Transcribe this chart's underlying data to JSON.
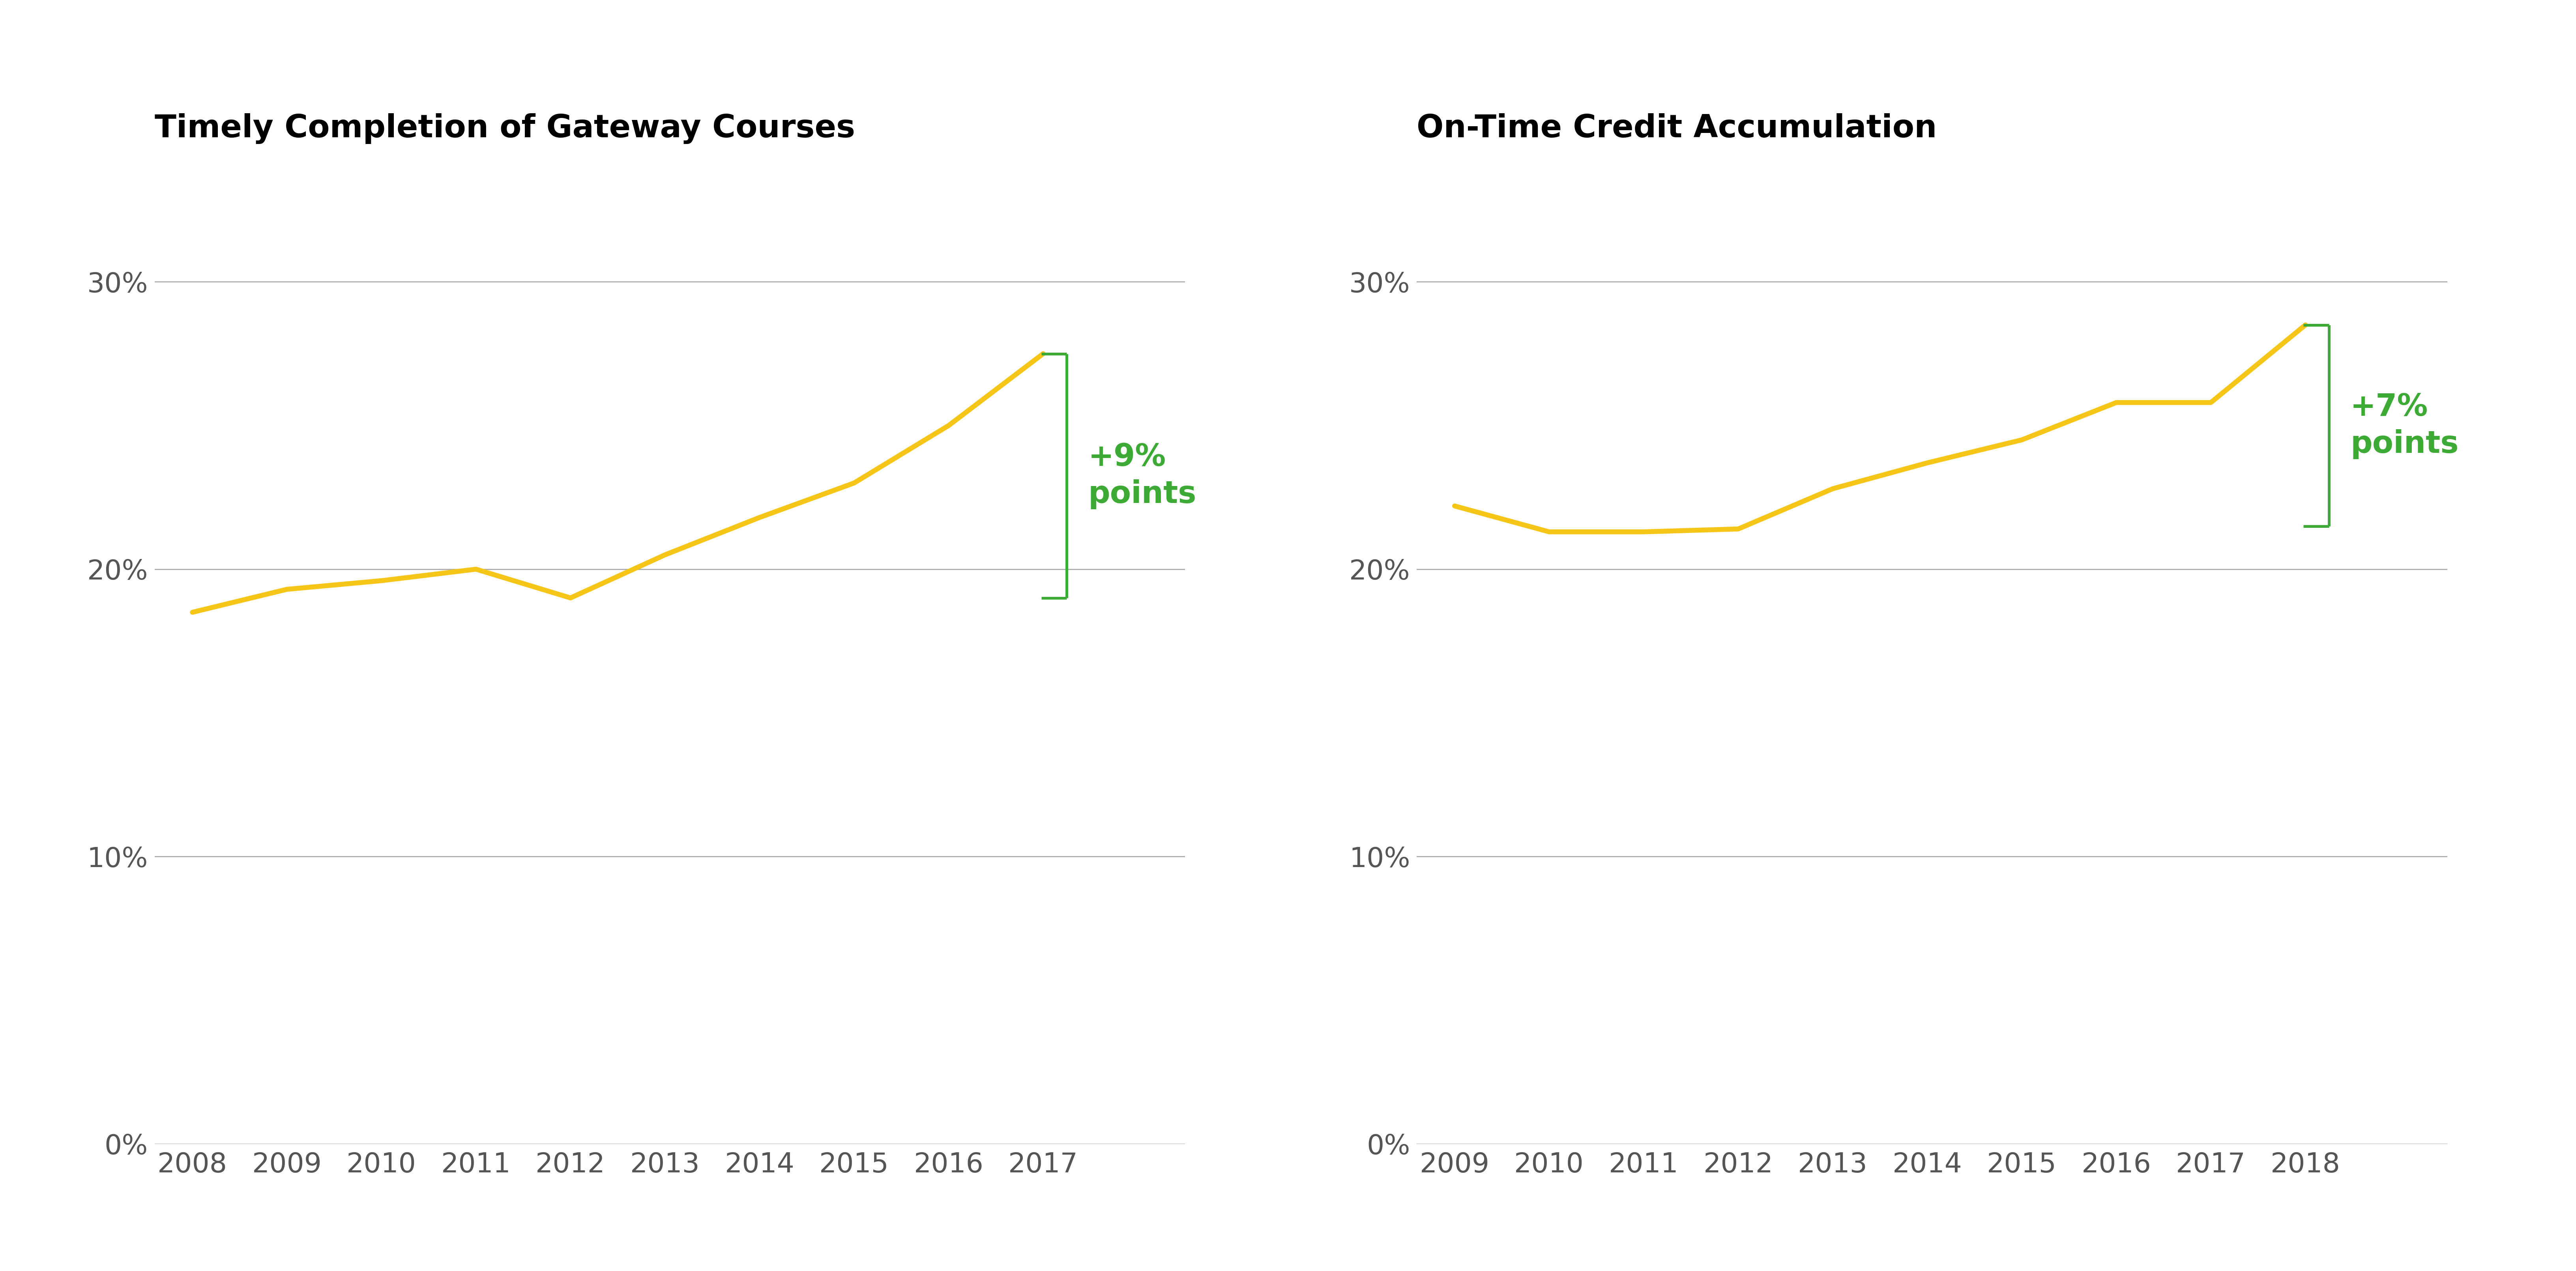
{
  "left_title": "Timely Completion of Gateway Courses",
  "right_title": "On-Time Credit Accumulation",
  "left_years": [
    2008,
    2009,
    2010,
    2011,
    2012,
    2013,
    2014,
    2015,
    2016,
    2017
  ],
  "left_values": [
    0.185,
    0.193,
    0.196,
    0.2,
    0.19,
    0.205,
    0.218,
    0.23,
    0.25,
    0.275
  ],
  "right_years": [
    2009,
    2010,
    2011,
    2012,
    2013,
    2014,
    2015,
    2016,
    2017,
    2018
  ],
  "right_values": [
    0.222,
    0.213,
    0.213,
    0.214,
    0.228,
    0.237,
    0.245,
    0.258,
    0.258,
    0.285
  ],
  "line_color": "#F5C518",
  "bracket_color": "#3DAA35",
  "annotation_color": "#3DAA35",
  "left_annotation": "+9%\npoints",
  "right_annotation": "+7%\npoints",
  "yticks": [
    0.0,
    0.1,
    0.2,
    0.3
  ],
  "ylim": [
    0.0,
    0.345
  ],
  "background_color": "#ffffff",
  "title_fontsize": 58,
  "tick_fontsize": 50,
  "annotation_fontsize": 56,
  "line_width": 9,
  "grid_color": "#aaaaaa",
  "tick_label_color": "#555555"
}
